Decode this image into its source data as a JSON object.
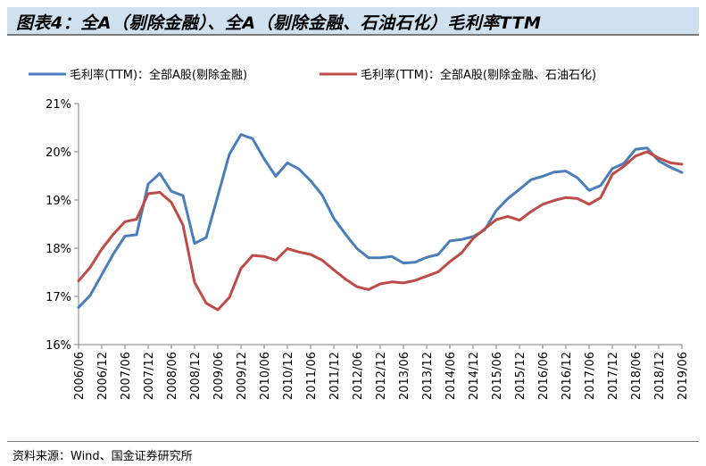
{
  "title": "图表4：全A（剔除金融）、全A（剔除金融、石油石化）毛利率TTM",
  "source": "资料来源：Wind、国金证券研究所",
  "chart_data": {
    "type": "line",
    "title": "图表4：全A（剔除金融）、全A（剔除金融、石油石化）毛利率TTM",
    "xlabel": "",
    "ylabel": "",
    "ylim": [
      16,
      21
    ],
    "yticks": [
      "16%",
      "17%",
      "18%",
      "19%",
      "20%",
      "21%"
    ],
    "tick_labels": [
      "2006/06",
      "2006/12",
      "2007/06",
      "2007/12",
      "2008/06",
      "2008/12",
      "2009/06",
      "2009/12",
      "2010/06",
      "2010/12",
      "2011/06",
      "2011/12",
      "2012/06",
      "2012/12",
      "2013/06",
      "2013/12",
      "2014/06",
      "2014/12",
      "2015/06",
      "2015/12",
      "2016/06",
      "2016/12",
      "2017/06",
      "2017/12",
      "2018/06",
      "2018/12",
      "2019/06"
    ],
    "categories": [
      "2006/06",
      "2006/09",
      "2006/12",
      "2007/03",
      "2007/06",
      "2007/09",
      "2007/12",
      "2008/03",
      "2008/06",
      "2008/09",
      "2008/12",
      "2009/03",
      "2009/06",
      "2009/09",
      "2009/12",
      "2010/03",
      "2010/06",
      "2010/09",
      "2010/12",
      "2011/03",
      "2011/06",
      "2011/09",
      "2011/12",
      "2012/03",
      "2012/06",
      "2012/09",
      "2012/12",
      "2013/03",
      "2013/06",
      "2013/09",
      "2013/12",
      "2014/03",
      "2014/06",
      "2014/09",
      "2014/12",
      "2015/03",
      "2015/06",
      "2015/09",
      "2015/12",
      "2016/03",
      "2016/06",
      "2016/09",
      "2016/12",
      "2017/03",
      "2017/06",
      "2017/09",
      "2017/12",
      "2018/03",
      "2018/06",
      "2018/09",
      "2018/12",
      "2019/03",
      "2019/06"
    ],
    "series": [
      {
        "name": "毛利率(TTM)：全部A股(剔除金融)",
        "color": "#4a7ebb",
        "values": [
          16.77,
          17.02,
          17.45,
          17.88,
          18.25,
          18.28,
          19.33,
          19.55,
          19.18,
          19.09,
          18.1,
          18.22,
          19.08,
          19.95,
          20.36,
          20.27,
          19.85,
          19.49,
          19.77,
          19.64,
          19.4,
          19.1,
          18.62,
          18.29,
          17.99,
          17.8,
          17.8,
          17.83,
          17.69,
          17.71,
          17.81,
          17.87,
          18.15,
          18.18,
          18.24,
          18.38,
          18.78,
          19.03,
          19.22,
          19.42,
          19.49,
          19.58,
          19.6,
          19.46,
          19.2,
          19.3,
          19.65,
          19.76,
          20.05,
          20.08,
          19.81,
          19.68,
          19.57
        ]
      },
      {
        "name": "毛利率(TTM)：全部A股(剔除金融、石油石化)",
        "color": "#be4b48",
        "values": [
          17.32,
          17.6,
          17.98,
          18.29,
          18.55,
          18.6,
          19.13,
          19.16,
          18.95,
          18.48,
          17.29,
          16.86,
          16.72,
          16.98,
          17.58,
          17.85,
          17.83,
          17.75,
          17.99,
          17.92,
          17.87,
          17.75,
          17.55,
          17.36,
          17.2,
          17.14,
          17.26,
          17.3,
          17.28,
          17.33,
          17.42,
          17.51,
          17.72,
          17.9,
          18.2,
          18.4,
          18.59,
          18.66,
          18.58,
          18.76,
          18.91,
          18.99,
          19.05,
          19.03,
          18.91,
          19.05,
          19.53,
          19.7,
          19.91,
          20.0,
          19.87,
          19.77,
          19.74
        ]
      }
    ],
    "legend": "top",
    "grid": false
  }
}
